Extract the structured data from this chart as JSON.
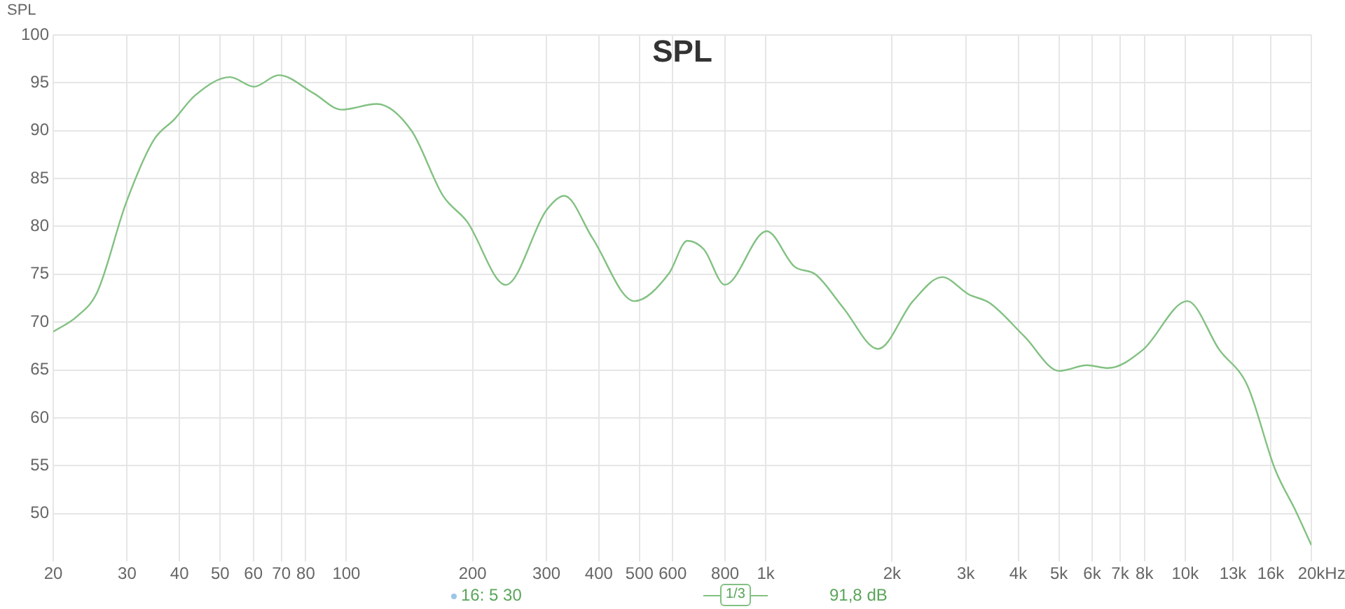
{
  "chart_data": {
    "type": "line",
    "title": "SPL",
    "ylabel": "SPL",
    "x": [
      20,
      22.8,
      25.5,
      29.8,
      34.7,
      38.9,
      43.6,
      52.8,
      60.2,
      69,
      83.6,
      97.5,
      118,
      143,
      170,
      194,
      240,
      300,
      331,
      386,
      486,
      588,
      650,
      712,
      799,
      1005,
      1171,
      1313,
      1530,
      1853,
      2244,
      2635,
      3047,
      3418,
      4138,
      5010,
      5838,
      6546,
      7926,
      10125,
      12070,
      14070,
      16392,
      18386,
      20000
    ],
    "series": [
      {
        "color": "#82c182",
        "values": [
          69,
          70.6,
          73.2,
          82.4,
          89,
          91.2,
          93.7,
          95.6,
          94.6,
          95.8,
          93.9,
          92.2,
          92.8,
          90,
          83.2,
          80.5,
          73.9,
          81.7,
          83.2,
          78.8,
          72.2,
          75.1,
          78.5,
          77.6,
          73.9,
          79.5,
          75.8,
          75,
          71.5,
          67.2,
          72.2,
          74.7,
          72.9,
          72,
          68.5,
          64.9,
          65.5,
          65.2,
          67.1,
          72.2,
          67.1,
          63.4,
          54.6,
          50.2,
          46.7
        ]
      }
    ],
    "log": "x",
    "xlim": [
      20,
      20000
    ],
    "xticks": [
      20,
      30,
      40,
      50,
      60,
      70,
      80,
      100,
      200,
      300,
      400,
      500,
      600,
      800,
      {
        "value": 1000,
        "label": "1k"
      },
      {
        "value": 2000,
        "label": "2k"
      },
      {
        "value": 3000,
        "label": "3k"
      },
      {
        "value": 4000,
        "label": "4k"
      },
      {
        "value": 5000,
        "label": "5k"
      },
      {
        "value": 6000,
        "label": "6k"
      },
      {
        "value": 7000,
        "label": "7k"
      },
      {
        "value": 8000,
        "label": "8k"
      },
      {
        "value": 10000,
        "label": "10k"
      },
      {
        "value": 13000,
        "label": "13k"
      },
      {
        "value": 16000,
        "label": "16k"
      },
      {
        "value": 20000,
        "label": "20k"
      }
    ],
    "xlabel": "Hz",
    "ylim": [
      45,
      100
    ],
    "yticks": [
      50,
      55,
      60,
      65,
      70,
      75,
      80,
      85,
      90,
      95,
      100
    ],
    "grid": true,
    "legend": false,
    "marker": "none",
    "line_style": "solid",
    "annotations": [
      "16: 5 30",
      "1/3",
      "91,8 dB"
    ]
  }
}
